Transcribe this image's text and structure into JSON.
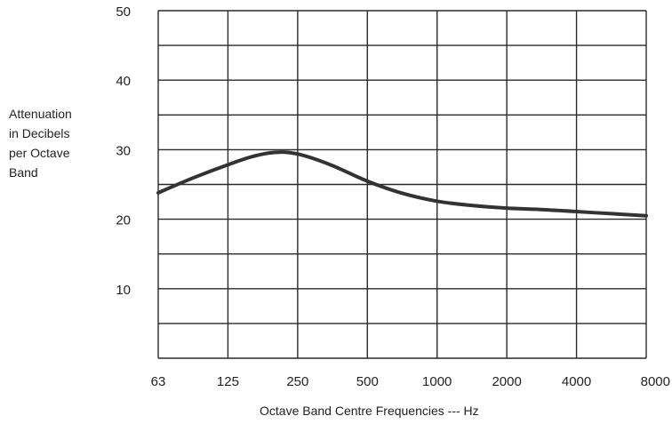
{
  "chart_data": {
    "type": "line",
    "ylabel_lines": [
      "Attenuation",
      "in Decibels",
      "per Octave",
      "Band"
    ],
    "xlabel": "Octave Band Centre Frequencies  ---  Hz",
    "categories": [
      "63",
      "125",
      "250",
      "500",
      "1000",
      "2000",
      "4000",
      "8000"
    ],
    "y_ticks": [
      "10",
      "20",
      "30",
      "40",
      "50"
    ],
    "ylim": [
      0,
      50
    ],
    "grid": true,
    "minor_y_grid_step": 5,
    "series": [
      {
        "x": [
          63,
          90,
          125,
          160,
          200,
          250,
          350,
          500,
          700,
          1000,
          1400,
          2000,
          2800,
          4000,
          5600,
          8000
        ],
        "y": [
          23.8,
          26.0,
          27.8,
          29.0,
          29.6,
          29.4,
          27.8,
          25.5,
          23.8,
          22.6,
          22.0,
          21.6,
          21.4,
          21.1,
          20.8,
          20.5
        ]
      }
    ],
    "colors": {
      "line": "#333333",
      "grid": "#2a2a2a",
      "text": "#222222"
    }
  }
}
